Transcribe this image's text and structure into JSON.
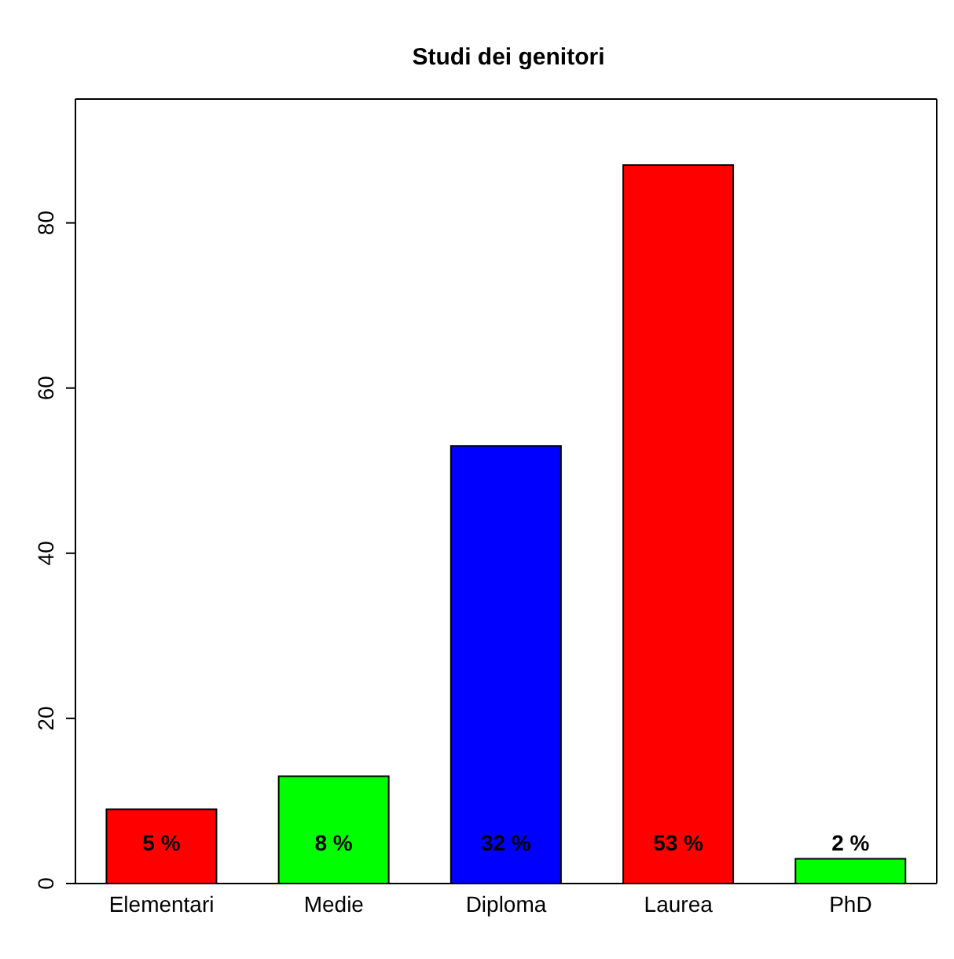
{
  "chart_data": {
    "type": "bar",
    "title": "Studi dei genitori",
    "categories": [
      "Elementari",
      "Medie",
      "Diploma",
      "Laurea",
      "PhD"
    ],
    "values": [
      9,
      13,
      53,
      87,
      3
    ],
    "colors": [
      "#ff0000",
      "#00ff00",
      "#0000ff",
      "#ff0000",
      "#00ff00"
    ],
    "annotations": [
      "5 %",
      "8 %",
      "32 %",
      "53 %",
      "2 %"
    ],
    "ylim": [
      0,
      95
    ],
    "yticks": [
      0,
      20,
      40,
      60,
      80
    ],
    "grid": false
  }
}
